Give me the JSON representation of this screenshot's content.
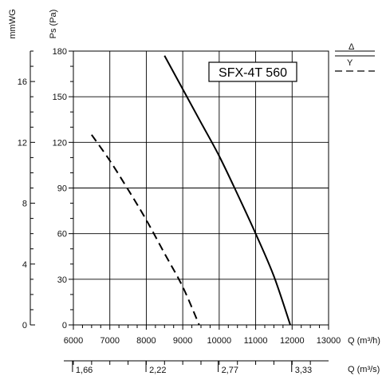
{
  "chart_data": {
    "type": "line",
    "title": "SFX-4T 560",
    "x": {
      "label": "Q (m³/h)",
      "range": [
        6000,
        13000
      ],
      "ticks": [
        6000,
        7000,
        8000,
        9000,
        10000,
        11000,
        12000,
        13000
      ],
      "tick_labels": [
        "6000",
        "7000",
        "8000",
        "9000",
        "10000",
        "11000",
        "12000",
        "13000"
      ]
    },
    "x2": {
      "label": "Q (m³/s)",
      "tick_labels": [
        "1,66",
        "2,22",
        "2,77",
        "3,33"
      ],
      "tick_values_m3h": [
        5976,
        7992,
        9972,
        11988
      ]
    },
    "y": {
      "label": "Ps (Pa)",
      "range": [
        0,
        180
      ],
      "ticks": [
        0,
        30,
        60,
        90,
        120,
        150,
        180
      ],
      "tick_labels": [
        "0",
        "30",
        "60",
        "90",
        "120",
        "150",
        "180"
      ]
    },
    "y2": {
      "label": "mmWG",
      "range": [
        0,
        18
      ],
      "tick_labels": [
        "0",
        "4",
        "8",
        "12",
        "16"
      ],
      "tick_values": [
        0,
        4,
        8,
        12,
        16
      ]
    },
    "series": [
      {
        "name": "Δ",
        "style": "solid",
        "points": [
          [
            8500,
            177
          ],
          [
            9000,
            155
          ],
          [
            9500,
            133
          ],
          [
            10000,
            111
          ],
          [
            10500,
            86
          ],
          [
            11000,
            60
          ],
          [
            11500,
            32
          ],
          [
            11950,
            0
          ]
        ]
      },
      {
        "name": "Y",
        "style": "dashed",
        "points": [
          [
            6500,
            125
          ],
          [
            7000,
            108
          ],
          [
            7500,
            89
          ],
          [
            8000,
            69
          ],
          [
            8500,
            47
          ],
          [
            9000,
            25
          ],
          [
            9450,
            0
          ]
        ]
      }
    ],
    "grid": true,
    "legend_position": "top-right"
  },
  "colors": {
    "line": "#000000",
    "grid": "#000000",
    "background": "#ffffff"
  }
}
